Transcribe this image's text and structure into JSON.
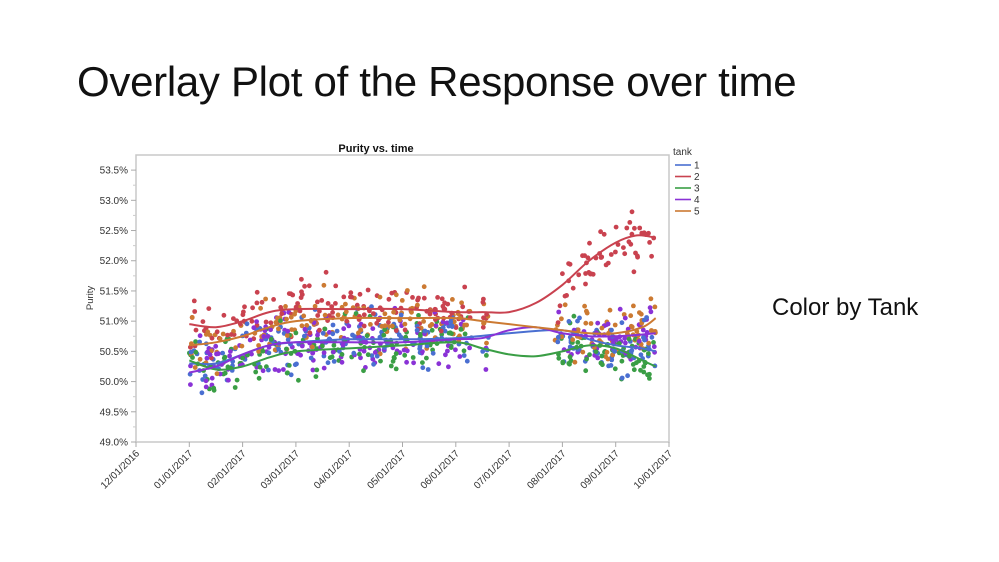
{
  "slide": {
    "title": "Overlay Plot of the Response over time",
    "note": "Color by Tank"
  },
  "chart_data": {
    "type": "scatter",
    "title": "Purity vs. time",
    "xlabel": "",
    "ylabel": "Purity",
    "ylim": [
      49.0,
      53.75
    ],
    "y_ticks": [
      "49.0%",
      "49.5%",
      "50.0%",
      "50.5%",
      "51.0%",
      "51.5%",
      "52.0%",
      "52.5%",
      "53.0%",
      "53.5%"
    ],
    "y_tick_values": [
      49.0,
      49.5,
      50.0,
      50.5,
      51.0,
      51.5,
      52.0,
      52.5,
      53.0,
      53.5
    ],
    "x_ticks": [
      "12/01/2016",
      "01/01/2017",
      "02/01/2017",
      "03/01/2017",
      "04/01/2017",
      "05/01/2017",
      "06/01/2017",
      "07/01/2017",
      "08/01/2017",
      "09/01/2017",
      "10/01/2017"
    ],
    "xlim_months": [
      0,
      10
    ],
    "grid": false,
    "legend": {
      "title": "tank",
      "position": "right",
      "entries": [
        {
          "label": "1",
          "color": "#4a6fd1"
        },
        {
          "label": "2",
          "color": "#c9424f"
        },
        {
          "label": "3",
          "color": "#3a9e45"
        },
        {
          "label": "4",
          "color": "#8a32d6"
        },
        {
          "label": "5",
          "color": "#cc7a32"
        }
      ]
    },
    "data_ranges_months": [
      [
        1.0,
        6.3
      ],
      [
        6.5,
        6.62
      ],
      [
        7.85,
        9.75
      ]
    ],
    "series": [
      {
        "name": "1",
        "color": "#4a6fd1",
        "center": 50.55,
        "spread": 0.55,
        "smoother": [
          [
            1.0,
            50.3
          ],
          [
            1.5,
            50.3
          ],
          [
            2.0,
            50.45
          ],
          [
            2.5,
            50.6
          ],
          [
            3.0,
            50.65
          ],
          [
            4.0,
            50.7
          ],
          [
            5.0,
            50.7
          ],
          [
            6.0,
            50.72
          ],
          [
            7.0,
            50.8
          ],
          [
            8.0,
            50.85
          ],
          [
            8.5,
            50.7
          ],
          [
            9.0,
            50.6
          ],
          [
            9.5,
            50.55
          ],
          [
            9.75,
            50.5
          ]
        ]
      },
      {
        "name": "2",
        "color": "#c9424f",
        "center": 51.1,
        "spread": 0.55,
        "smoother": [
          [
            1.0,
            50.95
          ],
          [
            1.5,
            50.9
          ],
          [
            2.0,
            51.0
          ],
          [
            2.5,
            51.15
          ],
          [
            3.0,
            51.2
          ],
          [
            4.0,
            51.2
          ],
          [
            5.0,
            51.2
          ],
          [
            6.0,
            51.15
          ],
          [
            6.5,
            51.15
          ],
          [
            7.0,
            51.15
          ],
          [
            7.5,
            51.3
          ],
          [
            8.0,
            51.6
          ],
          [
            8.5,
            52.0
          ],
          [
            9.0,
            52.3
          ],
          [
            9.4,
            52.42
          ],
          [
            9.75,
            52.38
          ]
        ]
      },
      {
        "name": "3",
        "color": "#3a9e45",
        "center": 50.3,
        "spread": 0.55,
        "smoother": [
          [
            1.0,
            50.35
          ],
          [
            1.5,
            50.2
          ],
          [
            2.0,
            50.25
          ],
          [
            2.5,
            50.4
          ],
          [
            3.0,
            50.5
          ],
          [
            4.0,
            50.55
          ],
          [
            5.0,
            50.6
          ],
          [
            6.0,
            50.65
          ],
          [
            6.5,
            50.55
          ],
          [
            7.0,
            50.45
          ],
          [
            7.5,
            50.42
          ],
          [
            8.0,
            50.5
          ],
          [
            8.5,
            50.6
          ],
          [
            9.0,
            50.55
          ],
          [
            9.5,
            50.35
          ],
          [
            9.75,
            50.25
          ]
        ]
      },
      {
        "name": "4",
        "color": "#8a32d6",
        "center": 50.45,
        "spread": 0.55,
        "smoother": [
          [
            1.0,
            50.15
          ],
          [
            1.5,
            50.25
          ],
          [
            2.0,
            50.45
          ],
          [
            2.5,
            50.6
          ],
          [
            3.0,
            50.65
          ],
          [
            4.0,
            50.65
          ],
          [
            5.0,
            50.65
          ],
          [
            6.0,
            50.7
          ],
          [
            6.5,
            50.72
          ],
          [
            7.0,
            50.85
          ],
          [
            7.5,
            50.9
          ],
          [
            8.0,
            50.8
          ],
          [
            8.5,
            50.75
          ],
          [
            9.0,
            50.75
          ],
          [
            9.5,
            50.78
          ],
          [
            9.75,
            50.8
          ]
        ]
      },
      {
        "name": "5",
        "color": "#cc7a32",
        "center": 50.95,
        "spread": 0.6,
        "smoother": [
          [
            1.0,
            50.6
          ],
          [
            1.5,
            50.65
          ],
          [
            2.0,
            50.75
          ],
          [
            2.5,
            50.9
          ],
          [
            3.0,
            51.0
          ],
          [
            4.0,
            51.05
          ],
          [
            5.0,
            51.05
          ],
          [
            6.0,
            51.05
          ],
          [
            6.5,
            51.0
          ],
          [
            7.0,
            50.95
          ],
          [
            7.5,
            50.9
          ],
          [
            8.0,
            50.85
          ],
          [
            8.5,
            50.8
          ],
          [
            9.0,
            50.8
          ],
          [
            9.5,
            50.9
          ],
          [
            9.75,
            51.05
          ]
        ]
      }
    ]
  }
}
